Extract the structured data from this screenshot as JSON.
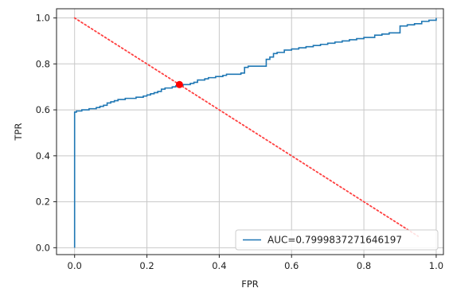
{
  "chart_data": {
    "type": "line",
    "title": "",
    "xlabel": "FPR",
    "ylabel": "TPR",
    "xlim": [
      -0.05,
      1.02
    ],
    "ylim": [
      -0.03,
      1.04
    ],
    "grid": true,
    "xticks": [
      0.0,
      0.2,
      0.4,
      0.6,
      0.8,
      1.0
    ],
    "yticks": [
      0.0,
      0.2,
      0.4,
      0.6,
      0.8,
      1.0
    ],
    "xtick_labels": [
      "0.0",
      "0.2",
      "0.4",
      "0.6",
      "0.8",
      "1.0"
    ],
    "ytick_labels": [
      "0.0",
      "0.2",
      "0.4",
      "0.6",
      "0.8",
      "1.0"
    ],
    "legend_position": "lower-right",
    "series": [
      {
        "name": "AUC=0.7999837271646197",
        "style": "solid",
        "color": "#1f77b4",
        "x": [
          0.0,
          0.0,
          0.0,
          0.005,
          0.02,
          0.03,
          0.04,
          0.06,
          0.07,
          0.08,
          0.09,
          0.1,
          0.11,
          0.12,
          0.13,
          0.14,
          0.15,
          0.17,
          0.18,
          0.19,
          0.2,
          0.21,
          0.22,
          0.23,
          0.24,
          0.25,
          0.27,
          0.28,
          0.29,
          0.3,
          0.32,
          0.33,
          0.34,
          0.36,
          0.37,
          0.39,
          0.4,
          0.41,
          0.42,
          0.44,
          0.45,
          0.46,
          0.47,
          0.47,
          0.48,
          0.5,
          0.53,
          0.53,
          0.54,
          0.55,
          0.55,
          0.56,
          0.58,
          0.6,
          0.62,
          0.64,
          0.66,
          0.68,
          0.7,
          0.72,
          0.74,
          0.76,
          0.78,
          0.8,
          0.82,
          0.83,
          0.85,
          0.86,
          0.87,
          0.9,
          0.9,
          0.92,
          0.94,
          0.96,
          0.98,
          0.99,
          1.0
        ],
        "y": [
          0.0,
          0.58,
          0.59,
          0.595,
          0.6,
          0.6,
          0.605,
          0.61,
          0.615,
          0.62,
          0.63,
          0.635,
          0.64,
          0.645,
          0.645,
          0.65,
          0.65,
          0.655,
          0.655,
          0.66,
          0.665,
          0.67,
          0.675,
          0.68,
          0.69,
          0.695,
          0.7,
          0.705,
          0.705,
          0.71,
          0.715,
          0.72,
          0.73,
          0.735,
          0.74,
          0.745,
          0.745,
          0.75,
          0.755,
          0.755,
          0.755,
          0.76,
          0.76,
          0.785,
          0.79,
          0.79,
          0.8,
          0.82,
          0.83,
          0.84,
          0.845,
          0.85,
          0.86,
          0.865,
          0.87,
          0.875,
          0.88,
          0.885,
          0.89,
          0.895,
          0.9,
          0.905,
          0.91,
          0.915,
          0.915,
          0.925,
          0.93,
          0.93,
          0.935,
          0.935,
          0.965,
          0.97,
          0.975,
          0.985,
          0.99,
          0.99,
          1.0
        ]
      },
      {
        "name": "",
        "style": "dotted",
        "color": "#ff4040",
        "x": [
          0.0,
          0.95
        ],
        "y": [
          1.0,
          0.05
        ]
      }
    ],
    "points": [
      {
        "x": 0.29,
        "y": 0.71,
        "color": "#ff0000"
      }
    ]
  }
}
